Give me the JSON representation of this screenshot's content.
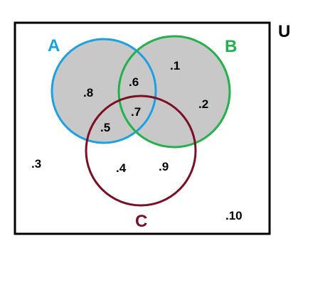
{
  "universe": {
    "label": "U",
    "border_color": "#000000"
  },
  "sets": {
    "A": {
      "label": "A",
      "color": "#1ba1e2"
    },
    "B": {
      "label": "B",
      "color": "#22b14c"
    },
    "C": {
      "label": "C",
      "color": "#7b0f24"
    }
  },
  "shading": {
    "description_region": "A ∪ B",
    "fill": "#c8c8c8"
  },
  "elements": {
    "only_a": ".8",
    "a_b": ".6",
    "a_b_c": ".7",
    "a_c": ".5",
    "only_b_top": ".1",
    "only_b_right": ".2",
    "outside": ".3",
    "only_c_left": ".4",
    "only_c_right": ".9",
    "outside_corner": ".10"
  }
}
